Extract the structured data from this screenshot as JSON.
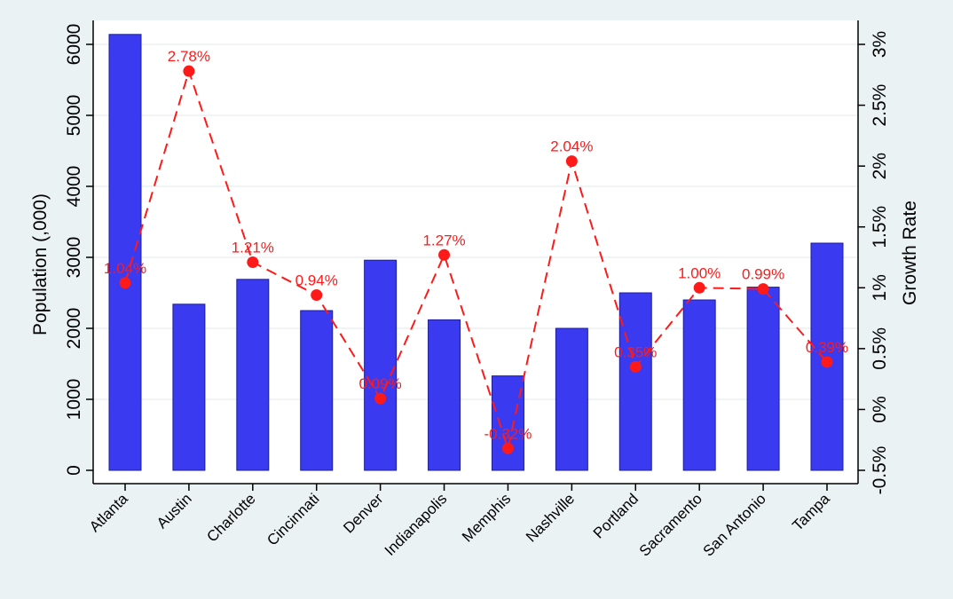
{
  "chart_data": {
    "type": "bar",
    "categories": [
      "Atlanta",
      "Austin",
      "Charlotte",
      "Cincinnati",
      "Denver",
      "Indianapolis",
      "Memphis",
      "Nashville",
      "Portland",
      "Sacramento",
      "San Antonio",
      "Tampa"
    ],
    "series": [
      {
        "type": "bar",
        "axis": "left",
        "values": [
          6140,
          2340,
          2690,
          2250,
          2960,
          2120,
          1330,
          2000,
          2500,
          2400,
          2580,
          3200
        ],
        "color": "#3a3af0"
      },
      {
        "type": "line",
        "axis": "right",
        "values": [
          1.04,
          2.78,
          1.21,
          0.94,
          0.09,
          1.27,
          -0.32,
          2.04,
          0.35,
          1.0,
          0.99,
          0.39
        ],
        "labels": [
          "1.04%",
          "2.78%",
          "1.21%",
          "0.94%",
          "0.09%",
          "1.27%",
          "-0.32%",
          "2.04%",
          "0.35%",
          "1.00%",
          "0.99%",
          "0.39%"
        ],
        "color": "#ff1a1a",
        "line_style": "dashed"
      }
    ],
    "ylabel": "Population (,000)",
    "ylim": [
      0,
      6000
    ],
    "yticks": [
      0,
      1000,
      2000,
      3000,
      4000,
      5000,
      6000
    ],
    "y2label": "Growth Rate",
    "y2lim": [
      -0.5,
      3
    ],
    "y2ticks": [
      -0.5,
      0,
      0.5,
      1,
      1.5,
      2,
      2.5,
      3
    ],
    "y2ticklabels": [
      "-0.5%",
      "0%",
      "0.5%",
      "1%",
      "1.5%",
      "2%",
      "2.5%",
      "3%"
    ],
    "grid": true,
    "colors": {
      "background": "#eaf2f3",
      "plot_background": "#ffffff",
      "grid": "#e8eeee"
    }
  }
}
